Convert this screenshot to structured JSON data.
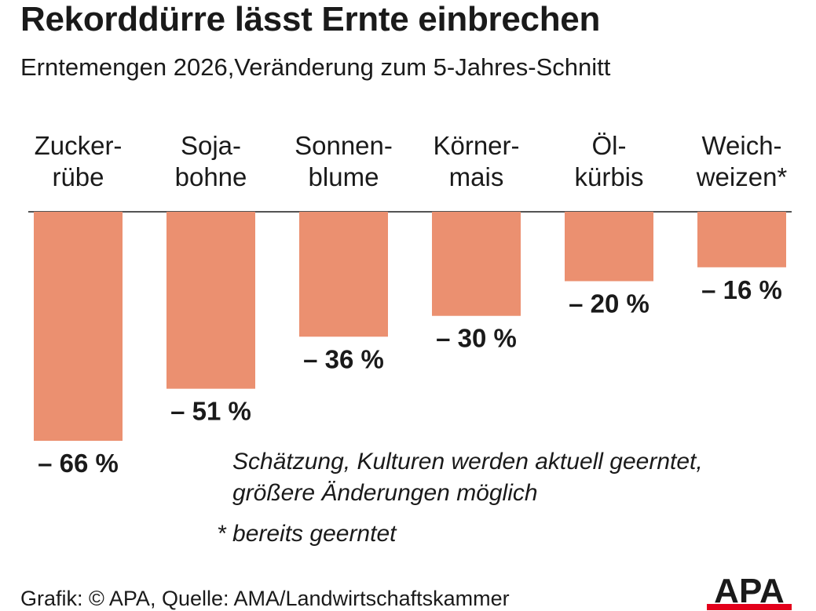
{
  "chart_data": {
    "type": "bar",
    "orientation": "vertical-negative",
    "title": "Rekorddürre lässt Ernte einbrechen",
    "subtitle": "Erntemengen 2026,Veränderung zum 5-Jahres-Schnitt",
    "categories": [
      [
        "Zucker-",
        "rübe"
      ],
      [
        "Soja-",
        "bohne"
      ],
      [
        "Sonnen-",
        "blume"
      ],
      [
        "Körner-",
        "mais"
      ],
      [
        "Öl-",
        "kürbis"
      ],
      [
        "Weich-",
        "weizen*"
      ]
    ],
    "values": [
      -66,
      -51,
      -36,
      -30,
      -20,
      -16
    ],
    "value_labels": [
      "– 66 %",
      "– 51 %",
      "– 36 %",
      "– 30 %",
      "– 20 %",
      "– 16 %"
    ],
    "unit": "%",
    "ylim": [
      -66,
      0
    ],
    "grid": false,
    "colors": {
      "bar": "#EB9070",
      "baseline": "#1a1a1a"
    }
  },
  "notes": {
    "line1": "Schätzung, Kulturen werden aktuell geerntet,",
    "line2": "größere Änderungen möglich",
    "line3": "* bereits geerntet"
  },
  "footer": {
    "source": "Grafik: © APA, Quelle: AMA/Landwirtschaftskammer",
    "logo_text": "APA",
    "logo_colors": {
      "text": "#1a1a1a",
      "stripe": "#E3001B"
    }
  }
}
